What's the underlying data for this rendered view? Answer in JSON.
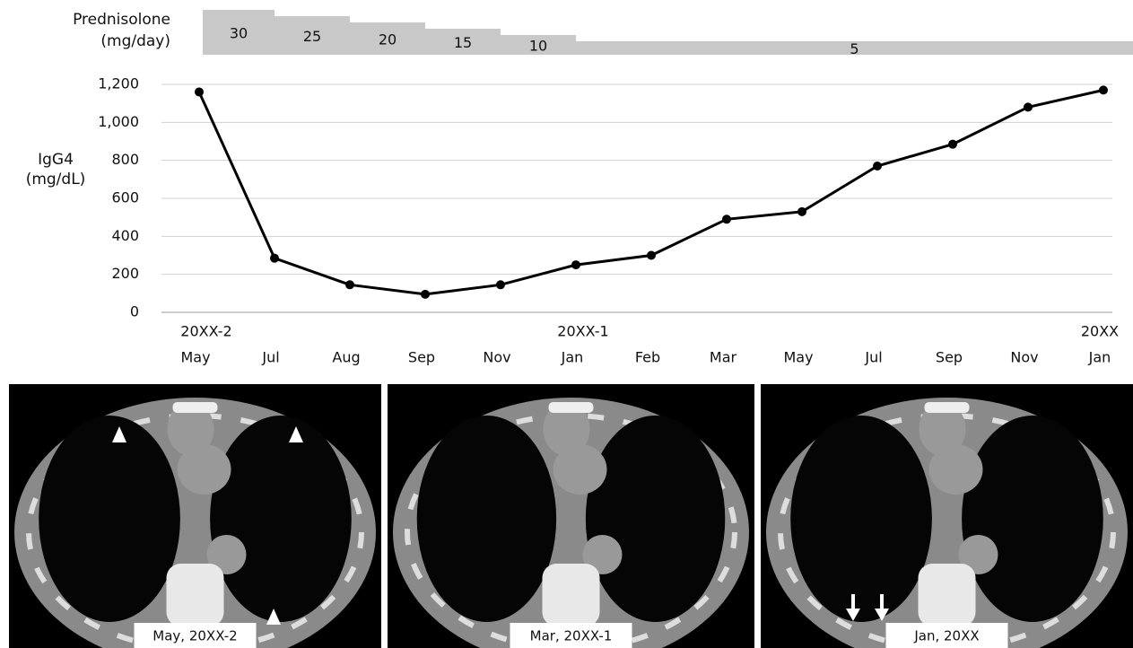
{
  "chart_data": {
    "type": "line",
    "dose_label": [
      "Prednisolone",
      "(mg/day)"
    ],
    "doses": [
      30,
      25,
      20,
      15,
      10,
      5
    ],
    "y_label": [
      "IgG4",
      "(mg/dL)"
    ],
    "categories": [
      "May",
      "Jul",
      "Aug",
      "Sep",
      "Nov",
      "Jan",
      "Feb",
      "Mar",
      "May",
      "Jul",
      "Sep",
      "Nov",
      "Jan"
    ],
    "year_labels": [
      "20XX-2",
      null,
      null,
      null,
      null,
      "20XX-1",
      null,
      null,
      null,
      null,
      null,
      null,
      "20XX"
    ],
    "values": [
      1160,
      285,
      145,
      95,
      145,
      250,
      300,
      490,
      530,
      770,
      885,
      1080,
      1170
    ],
    "color": "#000000",
    "ylim": [
      0,
      1200
    ],
    "yticks": [
      0,
      200,
      400,
      600,
      800,
      {
        "value": 1000,
        "label": "1,000"
      },
      {
        "value": 1200,
        "label": "1,200"
      }
    ],
    "grid": true
  },
  "images": [
    {
      "caption": "May, 20XX-2"
    },
    {
      "caption": "Mar, 20XX-1"
    },
    {
      "caption": "Jan, 20XX"
    }
  ]
}
